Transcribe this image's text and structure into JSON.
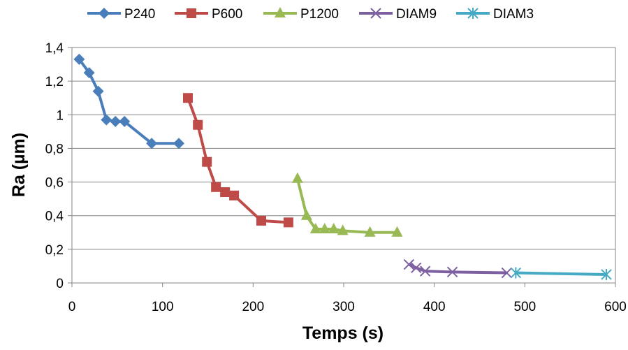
{
  "chart_data": {
    "type": "scatter",
    "title": "",
    "xlabel": "Temps (s)",
    "ylabel": "Ra (µm)",
    "xlim": [
      0,
      600
    ],
    "ylim": [
      0,
      1.4
    ],
    "xticks": [
      0,
      100,
      200,
      300,
      400,
      500,
      600
    ],
    "xtick_labels": [
      "0",
      "100",
      "200",
      "300",
      "400",
      "500",
      "600"
    ],
    "yticks": [
      0,
      0.2,
      0.4,
      0.6,
      0.8,
      1.0,
      1.2,
      1.4
    ],
    "ytick_labels": [
      "0",
      "0,2",
      "0,4",
      "0,6",
      "0,8",
      "1",
      "1,2",
      "1,4"
    ],
    "grid": "horizontal",
    "legend_position": "top",
    "series": [
      {
        "name": "P240",
        "color": "#4a7ebb",
        "marker": "diamond",
        "x": [
          8,
          19,
          29,
          38,
          48,
          58,
          88,
          118
        ],
        "y": [
          1.33,
          1.25,
          1.14,
          0.97,
          0.96,
          0.96,
          0.83,
          0.83
        ]
      },
      {
        "name": "P600",
        "color": "#be4b48",
        "marker": "square",
        "x": [
          128,
          139,
          149,
          159,
          169,
          179,
          209,
          239
        ],
        "y": [
          1.1,
          0.94,
          0.72,
          0.57,
          0.54,
          0.52,
          0.37,
          0.36
        ]
      },
      {
        "name": "P1200",
        "color": "#98b954",
        "marker": "triangle",
        "x": [
          249,
          259,
          269,
          279,
          289,
          299,
          329,
          359
        ],
        "y": [
          0.62,
          0.4,
          0.32,
          0.32,
          0.32,
          0.31,
          0.3,
          0.3
        ]
      },
      {
        "name": "DIAM9",
        "color": "#7d60a0",
        "marker": "x",
        "x": [
          372,
          380,
          390,
          420,
          480
        ],
        "y": [
          0.11,
          0.09,
          0.07,
          0.065,
          0.06
        ]
      },
      {
        "name": "DIAM3",
        "color": "#46aac5",
        "marker": "star",
        "x": [
          490,
          590
        ],
        "y": [
          0.06,
          0.05
        ]
      }
    ]
  }
}
